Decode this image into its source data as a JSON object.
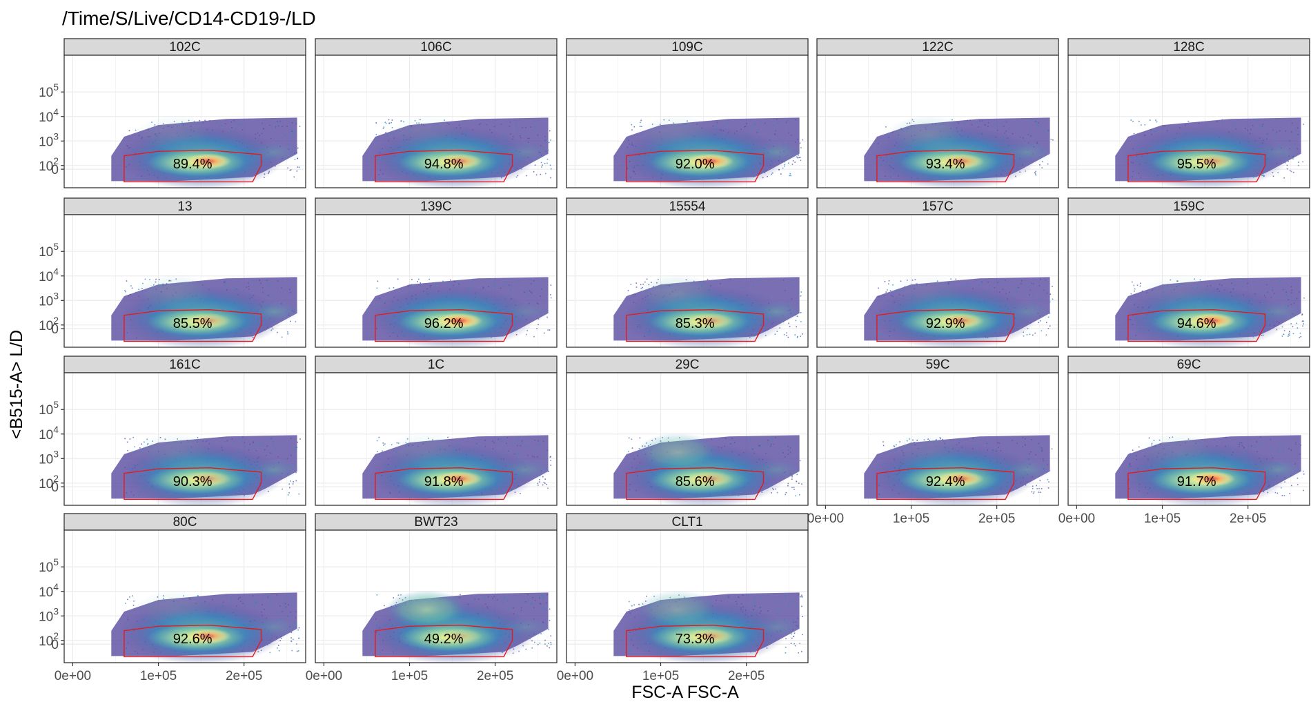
{
  "chart_data": {
    "type": "scatter",
    "title": "/Time/S/Live/CD14-CD19-/LD",
    "xlabel": "FSC-A FSC-A",
    "ylabel": "<B515-A> L/D",
    "x_ticks": [
      "0e+00",
      "1e+05",
      "2e+05"
    ],
    "x_tick_values": [
      0,
      100000,
      200000
    ],
    "xlim": [
      -10000,
      272000
    ],
    "y_ticks": [
      {
        "base": "10",
        "exp": "5",
        "value": 100000
      },
      {
        "base": "10",
        "exp": "4",
        "value": 10000
      },
      {
        "base": "10",
        "exp": "3",
        "value": 1000
      },
      {
        "base": "10",
        "exp": "2",
        "value": 100
      },
      {
        "base": "0",
        "exp": "",
        "value": 0
      }
    ],
    "y_scale": "logicle",
    "grid": true,
    "gate_color": "#e41a1c",
    "density_colors": [
      "#5e4fa2",
      "#3288bd",
      "#66c2a5",
      "#abdda4",
      "#e6f598",
      "#fee08b",
      "#fdae61",
      "#f46d43",
      "#d53e4f"
    ],
    "panels": [
      {
        "name": "102C",
        "gate_percent": "89.4%",
        "hot": 0.95,
        "side": 0.2,
        "upper": 0.15
      },
      {
        "name": "106C",
        "gate_percent": "94.8%",
        "hot": 0.75,
        "side": 0.15,
        "upper": 0.1
      },
      {
        "name": "109C",
        "gate_percent": "92.0%",
        "hot": 0.95,
        "side": 0.3,
        "upper": 0.15
      },
      {
        "name": "122C",
        "gate_percent": "93.4%",
        "hot": 0.75,
        "side": 0.25,
        "upper": 0.25
      },
      {
        "name": "128C",
        "gate_percent": "95.5%",
        "hot": 0.6,
        "side": 0.1,
        "upper": 0.05
      },
      {
        "name": "13",
        "gate_percent": "85.5%",
        "hot": 0.5,
        "side": 0.35,
        "upper": 0.2
      },
      {
        "name": "139C",
        "gate_percent": "96.2%",
        "hot": 1.0,
        "side": 0.1,
        "upper": 0.05
      },
      {
        "name": "15554",
        "gate_percent": "85.3%",
        "hot": 0.55,
        "side": 0.35,
        "upper": 0.25
      },
      {
        "name": "157C",
        "gate_percent": "92.9%",
        "hot": 0.7,
        "side": 0.15,
        "upper": 0.1
      },
      {
        "name": "159C",
        "gate_percent": "94.6%",
        "hot": 0.95,
        "side": 0.2,
        "upper": 0.1
      },
      {
        "name": "161C",
        "gate_percent": "90.3%",
        "hot": 0.5,
        "side": 0.3,
        "upper": 0.15
      },
      {
        "name": "1C",
        "gate_percent": "91.8%",
        "hot": 0.85,
        "side": 0.25,
        "upper": 0.15
      },
      {
        "name": "29C",
        "gate_percent": "85.6%",
        "hot": 0.5,
        "side": 0.2,
        "upper": 0.6
      },
      {
        "name": "59C",
        "gate_percent": "92.4%",
        "hot": 0.8,
        "side": 0.25,
        "upper": 0.1
      },
      {
        "name": "69C",
        "gate_percent": "91.7%",
        "hot": 1.0,
        "side": 0.3,
        "upper": 0.15
      },
      {
        "name": "80C",
        "gate_percent": "92.6%",
        "hot": 0.85,
        "side": 0.2,
        "upper": 0.15
      },
      {
        "name": "BWT23",
        "gate_percent": "49.2%",
        "hot": 0.3,
        "side": 0.15,
        "upper": 0.85
      },
      {
        "name": "CLT1",
        "gate_percent": "73.3%",
        "hot": 0.55,
        "side": 0.15,
        "upper": 0.5
      }
    ]
  }
}
